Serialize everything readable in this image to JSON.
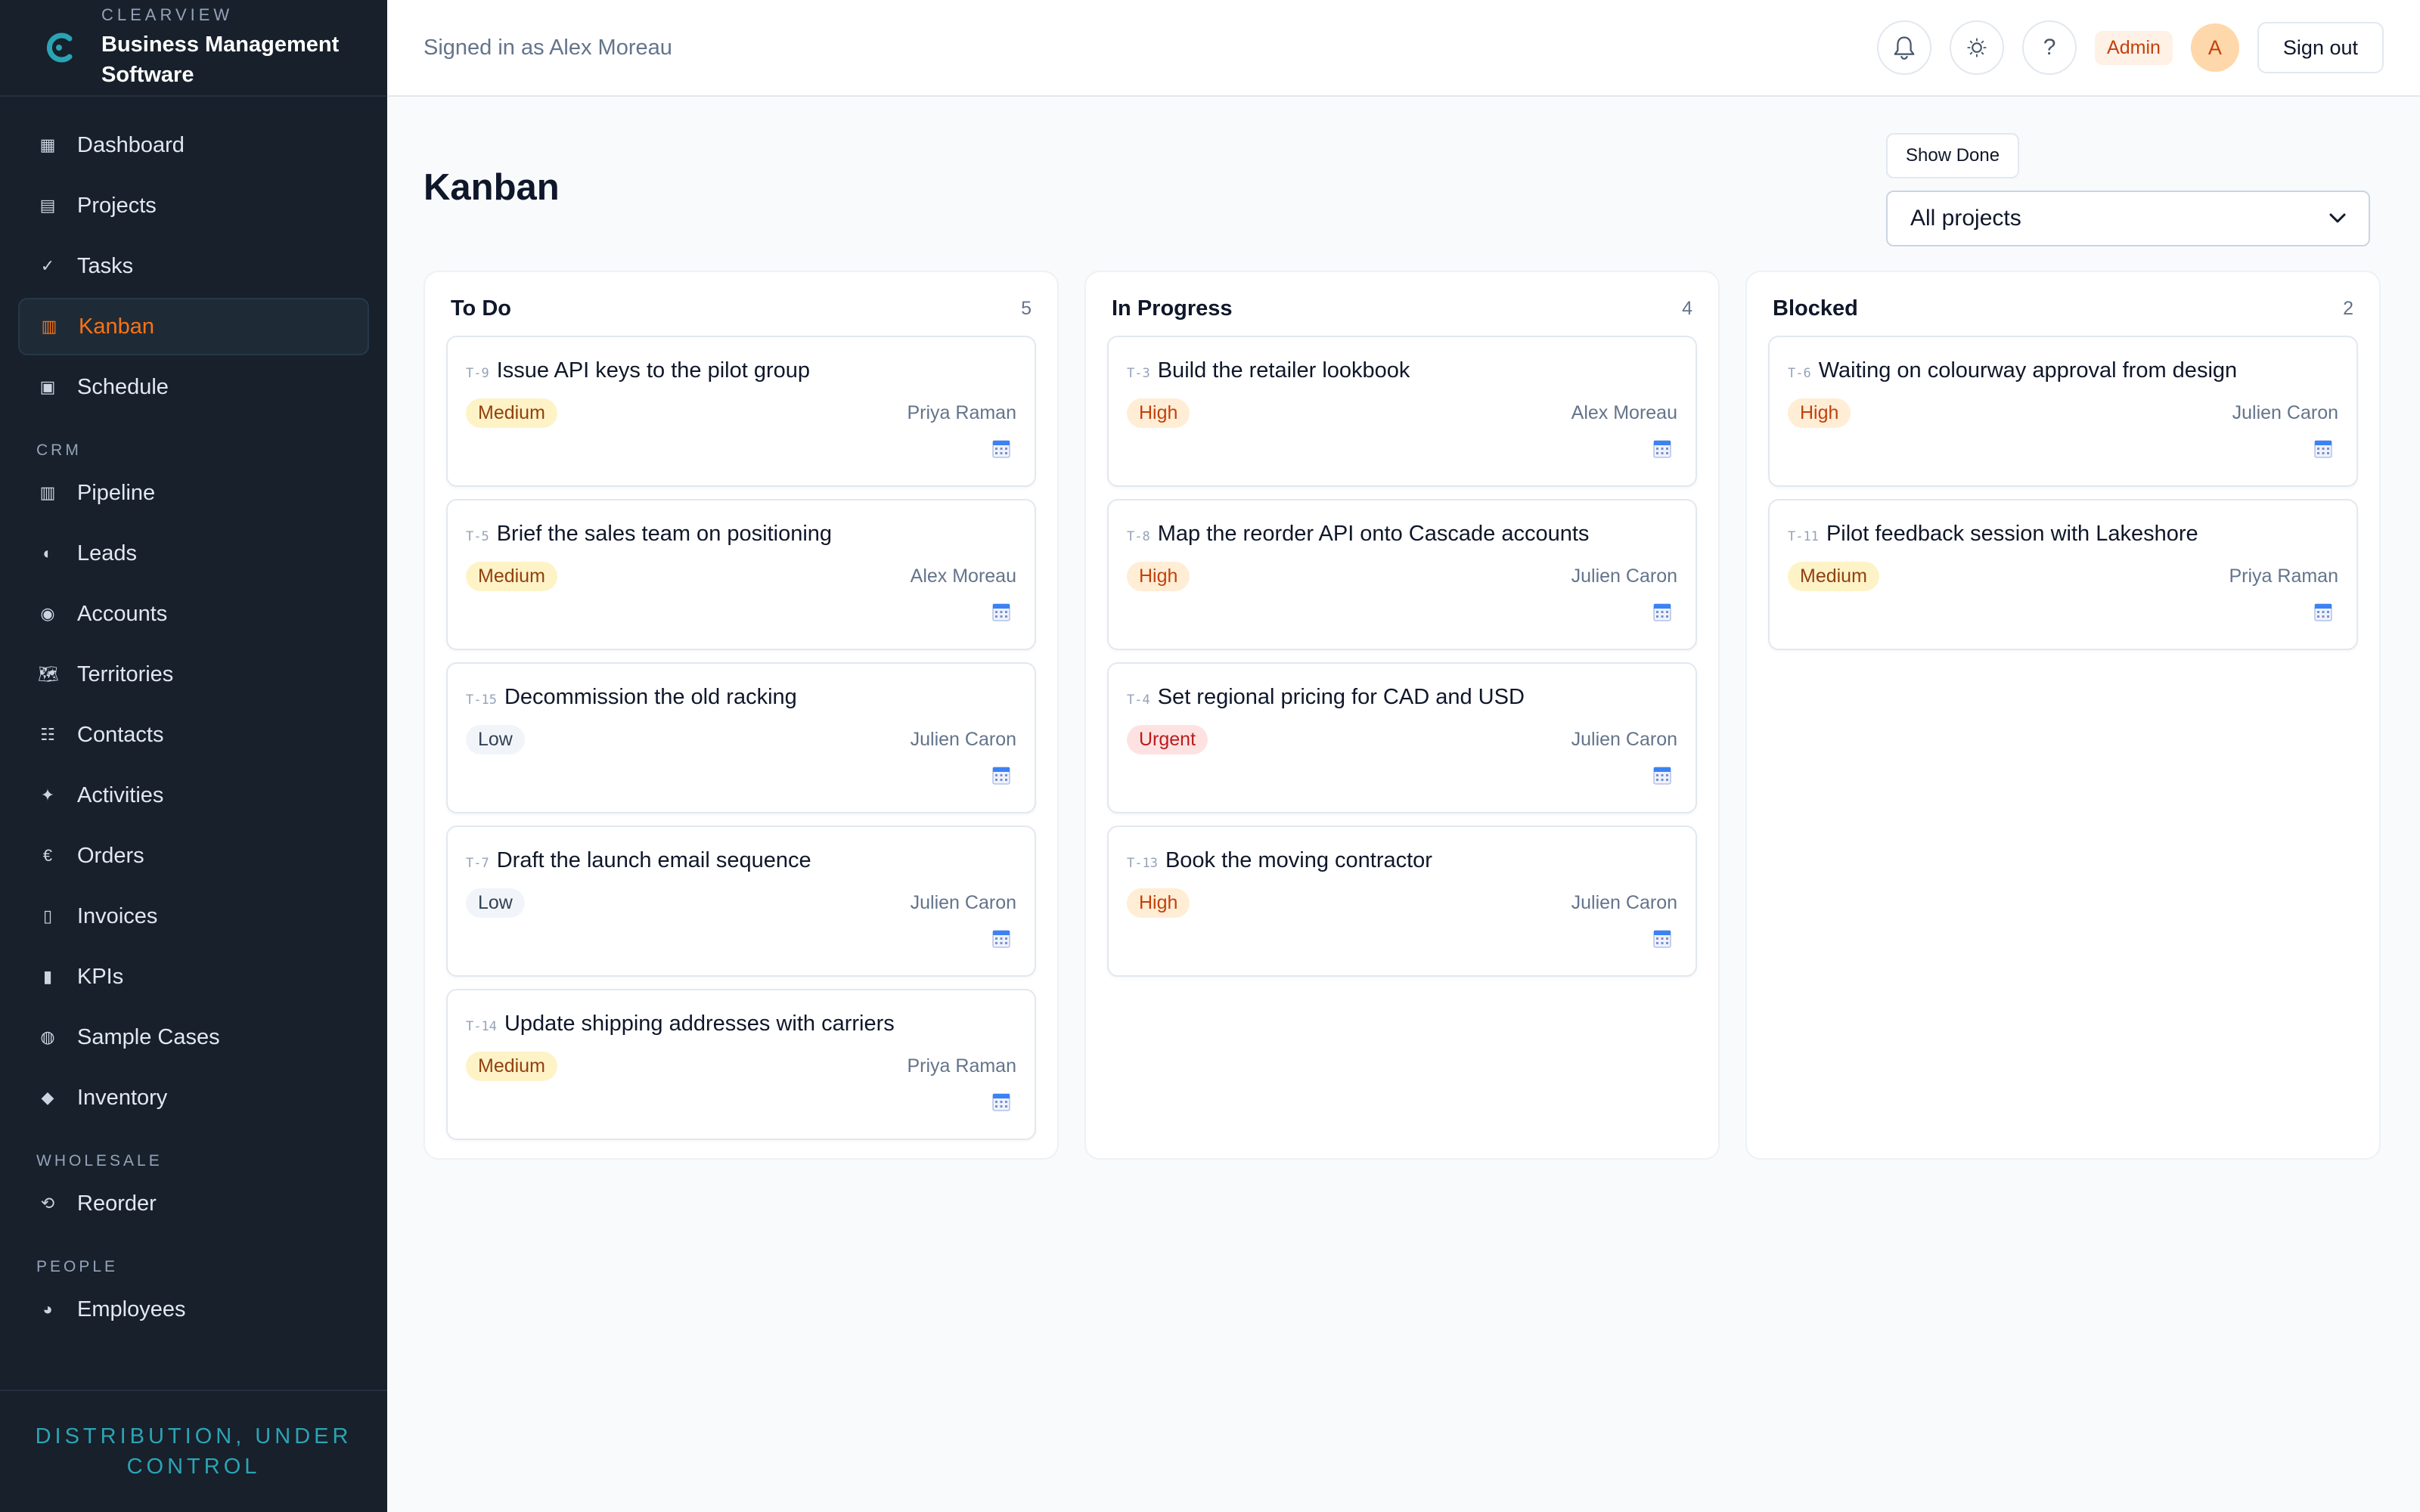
{
  "brand": {
    "eyebrow": "CLEARVIEW",
    "name_line1": "Business Management",
    "name_line2": "Software"
  },
  "nav": {
    "main": [
      {
        "label": "Dashboard",
        "icon": "▦"
      },
      {
        "label": "Projects",
        "icon": "▤"
      },
      {
        "label": "Tasks",
        "icon": "✓"
      },
      {
        "label": "Kanban",
        "icon": "▥"
      },
      {
        "label": "Schedule",
        "icon": "▣"
      }
    ],
    "crm_heading": "CRM",
    "crm": [
      {
        "label": "Pipeline",
        "icon": "▥"
      },
      {
        "label": "Leads",
        "icon": "◐"
      },
      {
        "label": "Accounts",
        "icon": "◉"
      },
      {
        "label": "Territories",
        "icon": "🗺"
      },
      {
        "label": "Contacts",
        "icon": "☷"
      },
      {
        "label": "Activities",
        "icon": "✦"
      },
      {
        "label": "Orders",
        "icon": "€"
      },
      {
        "label": "Invoices",
        "icon": "▯"
      },
      {
        "label": "KPIs",
        "icon": "▮"
      },
      {
        "label": "Sample Cases",
        "icon": "◍"
      },
      {
        "label": "Inventory",
        "icon": "◆"
      }
    ],
    "wholesale_heading": "WHOLESALE",
    "wholesale": [
      {
        "label": "Reorder",
        "icon": "⟲"
      }
    ],
    "people_heading": "PEOPLE",
    "people": [
      {
        "label": "Employees",
        "icon": "◕"
      }
    ]
  },
  "footer_tagline": "DISTRIBUTION, UNDER CONTROL",
  "header": {
    "signed_in": "Signed in as Alex Moreau",
    "help": "?",
    "role": "Admin",
    "avatar_initial": "A",
    "sign_out": "Sign out"
  },
  "page": {
    "title": "Kanban",
    "show_done": "Show Done",
    "project_filter": "All projects"
  },
  "colors": {
    "accent": "#f97316",
    "sidebar_bg": "#17202b",
    "tagline": "#2aa4b4"
  },
  "board": {
    "columns": [
      {
        "title": "To Do",
        "count": "5",
        "cards": [
          {
            "id": "T-9",
            "title": "Issue API keys to the pilot group",
            "priority": "Medium",
            "assignee": "Priya Raman"
          },
          {
            "id": "T-5",
            "title": "Brief the sales team on positioning",
            "priority": "Medium",
            "assignee": "Alex Moreau"
          },
          {
            "id": "T-15",
            "title": "Decommission the old racking",
            "priority": "Low",
            "assignee": "Julien Caron"
          },
          {
            "id": "T-7",
            "title": "Draft the launch email sequence",
            "priority": "Low",
            "assignee": "Julien Caron"
          },
          {
            "id": "T-14",
            "title": "Update shipping addresses with carriers",
            "priority": "Medium",
            "assignee": "Priya Raman"
          }
        ]
      },
      {
        "title": "In Progress",
        "count": "4",
        "cards": [
          {
            "id": "T-3",
            "title": "Build the retailer lookbook",
            "priority": "High",
            "assignee": "Alex Moreau"
          },
          {
            "id": "T-8",
            "title": "Map the reorder API onto Cascade accounts",
            "priority": "High",
            "assignee": "Julien Caron"
          },
          {
            "id": "T-4",
            "title": "Set regional pricing for CAD and USD",
            "priority": "Urgent",
            "assignee": "Julien Caron"
          },
          {
            "id": "T-13",
            "title": "Book the moving contractor",
            "priority": "High",
            "assignee": "Julien Caron"
          }
        ]
      },
      {
        "title": "Blocked",
        "count": "2",
        "cards": [
          {
            "id": "T-6",
            "title": "Waiting on colourway approval from design",
            "priority": "High",
            "assignee": "Julien Caron"
          },
          {
            "id": "T-11",
            "title": "Pilot feedback session with Lakeshore",
            "priority": "Medium",
            "assignee": "Priya Raman"
          }
        ]
      }
    ]
  }
}
